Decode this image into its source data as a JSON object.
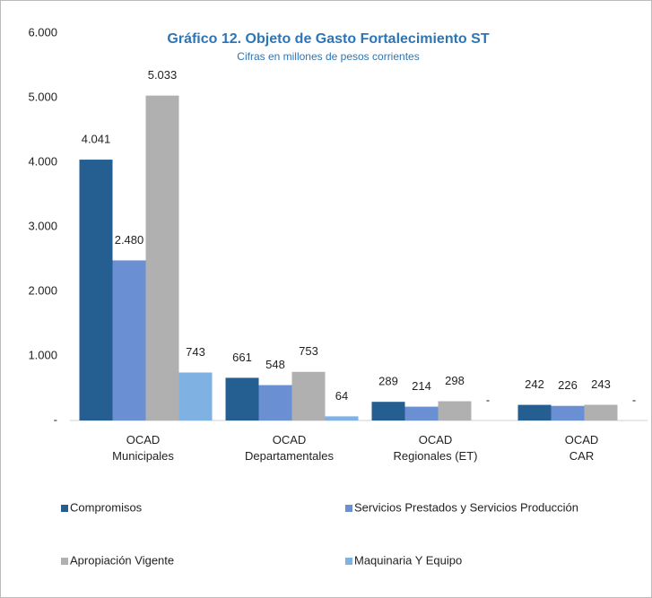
{
  "chart_data": {
    "type": "bar",
    "title": "Gráfico 12. Objeto de Gasto Fortalecimiento ST",
    "subtitle": "Cifras en millones de pesos corrientes",
    "categories": [
      [
        "OCAD",
        "Municipales"
      ],
      [
        "OCAD",
        "Departamentales"
      ],
      [
        "OCAD",
        "Regionales (ET)"
      ],
      [
        "OCAD",
        "CAR"
      ]
    ],
    "series": [
      {
        "name": "Compromisos",
        "color": "#255e91",
        "values": [
          4041,
          661,
          289,
          242
        ],
        "value_labels": [
          "4.041",
          "661",
          "289",
          "242"
        ]
      },
      {
        "name": "Servicios Prestados y Servicios Producción",
        "color": "#6a8fd2",
        "values": [
          2480,
          548,
          214,
          226
        ],
        "value_labels": [
          "2.480",
          "548",
          "214",
          "226"
        ]
      },
      {
        "name": "Apropiación Vigente",
        "color": "#b0b0b0",
        "values": [
          5033,
          753,
          298,
          243
        ],
        "value_labels": [
          "5.033",
          "753",
          "298",
          "243"
        ]
      },
      {
        "name": "Maquinaria Y Equipo",
        "color": "#7fb2e2",
        "values": [
          743,
          64,
          0,
          0
        ],
        "value_labels": [
          "743",
          "64",
          "-",
          "-"
        ]
      }
    ],
    "ylim": [
      0,
      6000
    ],
    "yticks": [
      {
        "value": 0,
        "label": "-"
      },
      {
        "value": 1000,
        "label": "1.000"
      },
      {
        "value": 2000,
        "label": "2.000"
      },
      {
        "value": 3000,
        "label": "3.000"
      },
      {
        "value": 4000,
        "label": "4.000"
      },
      {
        "value": 5000,
        "label": "5.000"
      },
      {
        "value": 6000,
        "label": "6.000"
      }
    ],
    "grid": false,
    "legend": "bottom"
  }
}
